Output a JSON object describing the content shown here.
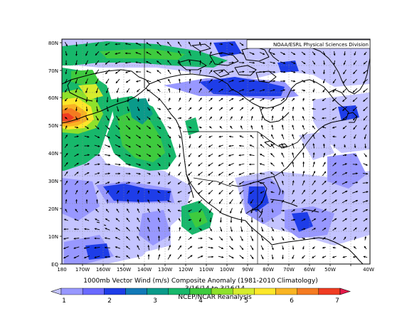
{
  "credit": "NOAA/ESRL Physical Sciences Division",
  "caption": {
    "title": "1000mb Vector Wind (m/s) Composite Anomaly (1981-2010 Climatology)",
    "dates": "3/16/14 to 3/16/14",
    "source": "NCEP/NCAR Reanalysis"
  },
  "lat_ticks": [
    "EQ",
    "10N",
    "20N",
    "30N",
    "40N",
    "50N",
    "60N",
    "70N",
    "80N"
  ],
  "lon_ticks": [
    "180",
    "170W",
    "160W",
    "150W",
    "140W",
    "130W",
    "120W",
    "110W",
    "100W",
    "90W",
    "80W",
    "70W",
    "60W",
    "50W",
    "40W"
  ],
  "colorbar": {
    "labels": [
      "1",
      "2",
      "3",
      "4",
      "5",
      "6",
      "7"
    ],
    "colors": [
      "#c4c4ff",
      "#9898ff",
      "#6a6aff",
      "#1e3de8",
      "#1279b7",
      "#0a9a8a",
      "#17b86b",
      "#3ecb3e",
      "#8ee12b",
      "#d6ec2d",
      "#fce72a",
      "#f9b423",
      "#f57b21",
      "#f03c22",
      "#e61a4a"
    ]
  },
  "colors": {
    "land_line": "#000000",
    "background": "#ffffff"
  }
}
